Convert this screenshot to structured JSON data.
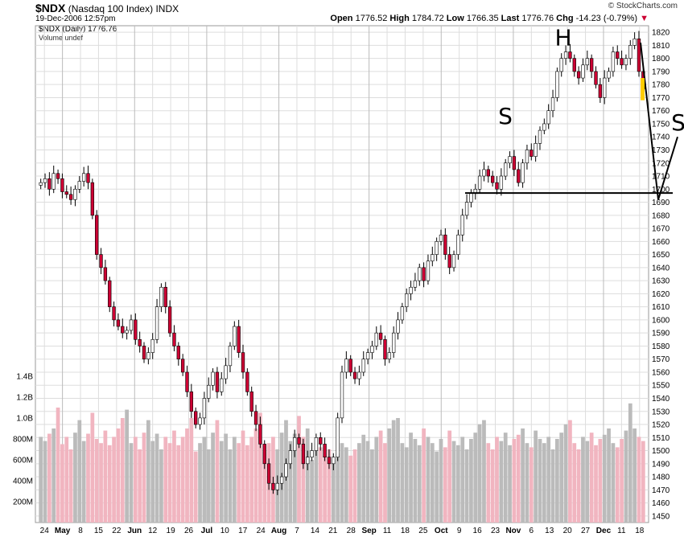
{
  "header": {
    "symbol": "$NDX",
    "name": "(Nasdaq 100 Index)",
    "exchange": "INDX",
    "datetime": "19-Dec-2006 12:57pm",
    "brand": "© StockCharts.com",
    "open_label": "Open",
    "open": "1776.52",
    "high_label": "High",
    "high": "1784.72",
    "low_label": "Low",
    "low": "1766.35",
    "last_label": "Last",
    "last": "1776.76",
    "chg_label": "Chg",
    "chg": "-14.23 (-0.79%)",
    "chg_arrow": "▼"
  },
  "legend": {
    "price": "$NDX (Daily) 1776.76",
    "volume": "Volume undef"
  },
  "colors": {
    "up": "#ffffff",
    "down": "#cc0033",
    "vol_up": "#bbbbbb",
    "vol_down": "#f1b5c0",
    "grid": "#dddddd",
    "annotation": "#000000",
    "highlight": "#ffcc00"
  },
  "chart_data": {
    "type": "candlestick",
    "price_axis": {
      "ylim": [
        1445,
        1825
      ],
      "ticks": [
        1450,
        1460,
        1470,
        1480,
        1490,
        1500,
        1510,
        1520,
        1530,
        1540,
        1550,
        1560,
        1570,
        1580,
        1590,
        1600,
        1610,
        1620,
        1630,
        1640,
        1650,
        1660,
        1670,
        1680,
        1690,
        1700,
        1710,
        1720,
        1730,
        1740,
        1750,
        1760,
        1770,
        1780,
        1790,
        1800,
        1810,
        1820
      ]
    },
    "volume_axis": {
      "ticks": [
        "200M",
        "400M",
        "600M",
        "800M",
        "1.0B",
        "1.2B",
        "1.4B"
      ],
      "tick_values": [
        200,
        400,
        600,
        800,
        1000,
        1200,
        1400
      ],
      "max": 1500
    },
    "x_ticks": [
      "24",
      "May",
      "8",
      "15",
      "22",
      "Jun",
      "12",
      "19",
      "26",
      "Jul",
      "10",
      "17",
      "24",
      "Aug",
      "7",
      "14",
      "21",
      "28",
      "Sep",
      "11",
      "18",
      "25",
      "Oct",
      "9",
      "16",
      "23",
      "Nov",
      "6",
      "13",
      "20",
      "27",
      "Dec",
      "11",
      "18"
    ],
    "month_labels": [
      "May",
      "Jun",
      "Jul",
      "Aug",
      "Sep",
      "Oct",
      "Nov",
      "Dec"
    ],
    "close_path": [
      1705,
      1708,
      1700,
      1712,
      1708,
      1698,
      1696,
      1692,
      1700,
      1706,
      1712,
      1705,
      1680,
      1650,
      1640,
      1630,
      1610,
      1600,
      1595,
      1590,
      1592,
      1600,
      1585,
      1580,
      1570,
      1575,
      1585,
      1610,
      1625,
      1610,
      1590,
      1580,
      1570,
      1560,
      1545,
      1530,
      1520,
      1525,
      1540,
      1550,
      1560,
      1545,
      1555,
      1565,
      1580,
      1595,
      1575,
      1560,
      1545,
      1530,
      1520,
      1505,
      1490,
      1475,
      1470,
      1475,
      1480,
      1490,
      1500,
      1510,
      1505,
      1490,
      1495,
      1500,
      1510,
      1505,
      1495,
      1490,
      1495,
      1525,
      1560,
      1570,
      1560,
      1555,
      1560,
      1570,
      1575,
      1580,
      1590,
      1585,
      1570,
      1575,
      1590,
      1600,
      1610,
      1620,
      1625,
      1630,
      1640,
      1630,
      1645,
      1650,
      1660,
      1665,
      1650,
      1640,
      1650,
      1665,
      1680,
      1690,
      1697,
      1700,
      1710,
      1715,
      1710,
      1705,
      1700,
      1710,
      1720,
      1725,
      1715,
      1705,
      1720,
      1730,
      1725,
      1735,
      1745,
      1750,
      1760,
      1770,
      1790,
      1800,
      1805,
      1800,
      1790,
      1785,
      1795,
      1800,
      1790,
      1780,
      1770,
      1785,
      1790,
      1805,
      1800,
      1795,
      1800,
      1810,
      1815,
      1790,
      1776.76
    ],
    "volume_path": [
      820,
      780,
      850,
      900,
      1100,
      750,
      820,
      700,
      860,
      980,
      780,
      850,
      1050,
      800,
      760,
      880,
      740,
      820,
      900,
      1000,
      1080,
      760,
      820,
      700,
      860,
      980,
      780,
      850,
      700,
      820,
      760,
      880,
      740,
      820,
      900,
      1000,
      680,
      760,
      820,
      700,
      860,
      980,
      780,
      850,
      700,
      820,
      760,
      880,
      740,
      820,
      900,
      1050,
      680,
      760,
      820,
      700,
      860,
      980,
      780,
      850,
      1020,
      820,
      900,
      600,
      760,
      720,
      640,
      700,
      600,
      660,
      760,
      720,
      640,
      700,
      760,
      840,
      780,
      700,
      820,
      880,
      760,
      900,
      980,
      1000,
      760,
      720,
      860,
      800,
      740,
      900,
      820,
      760,
      680,
      800,
      720,
      880,
      780,
      740,
      820,
      700,
      800,
      860,
      940,
      980,
      760,
      700,
      820,
      780,
      860,
      740,
      800,
      840,
      900,
      760,
      720,
      880,
      800,
      760,
      820,
      700,
      800,
      860,
      940,
      980,
      760,
      700,
      820,
      780,
      860,
      740,
      800,
      840,
      900,
      760,
      720,
      800,
      880,
      1140,
      900
    ],
    "resistance_level": 1697,
    "annotations": [
      "S",
      "H",
      "S"
    ],
    "highlight_range": [
      1768,
      1785
    ]
  }
}
